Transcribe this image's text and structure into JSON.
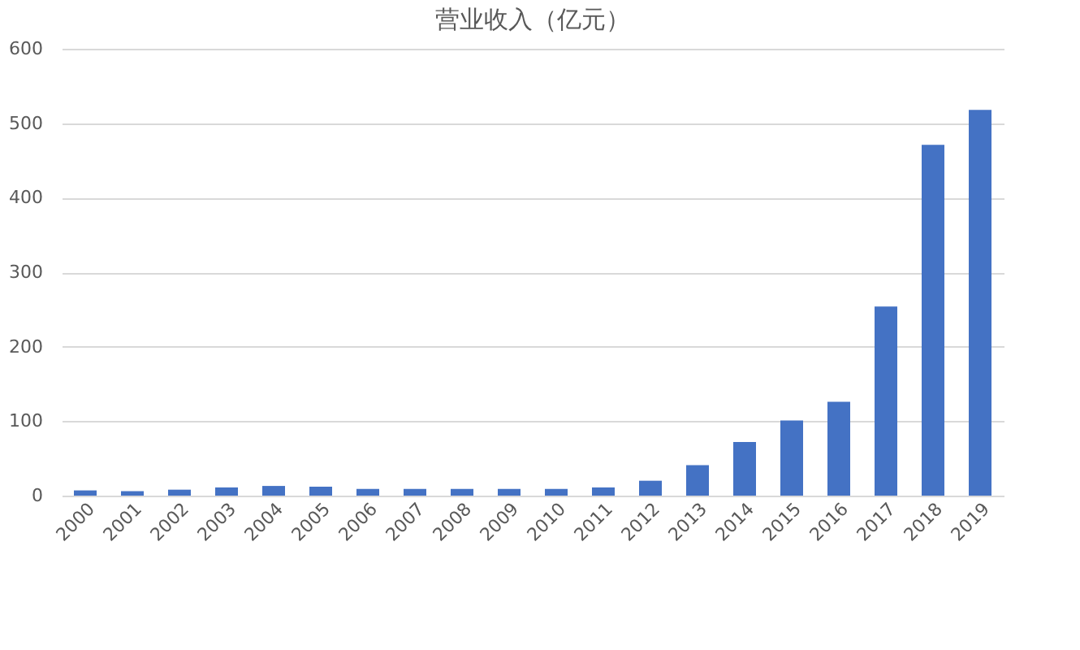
{
  "chart_data": {
    "type": "bar",
    "title": "营业收入（亿元）",
    "categories": [
      "2000",
      "2001",
      "2002",
      "2003",
      "2004",
      "2005",
      "2006",
      "2007",
      "2008",
      "2009",
      "2010",
      "2011",
      "2012",
      "2013",
      "2014",
      "2015",
      "2016",
      "2017",
      "2018",
      "2019"
    ],
    "values": [
      7,
      6,
      8,
      11,
      13,
      12,
      9,
      9,
      9,
      9,
      9,
      11,
      20,
      41,
      72,
      101,
      126,
      254,
      471,
      518
    ],
    "color": "#4472c4",
    "ylim": [
      0,
      600
    ],
    "yticks": [
      0,
      100,
      200,
      300,
      400,
      500,
      600
    ],
    "grid": "y"
  }
}
